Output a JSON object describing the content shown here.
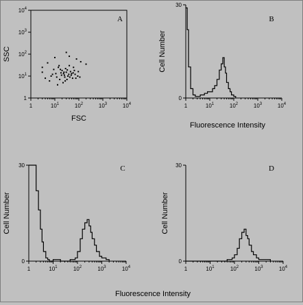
{
  "chart_data": [
    {
      "panel": "A",
      "type": "scatter",
      "xlabel": "FSC",
      "ylabel": "SSC",
      "xscale": "log",
      "yscale": "log",
      "xlim": [
        1,
        10000
      ],
      "ylim": [
        1,
        10000
      ],
      "xticks": [
        "1",
        "10^1",
        "10^2",
        "10^3",
        "10^4"
      ],
      "yticks": [
        "1",
        "10^1",
        "10^2",
        "10^3",
        "10^4"
      ],
      "points": [
        [
          5,
          40
        ],
        [
          15,
          30
        ],
        [
          40,
          80
        ],
        [
          60,
          25
        ],
        [
          80,
          60
        ],
        [
          120,
          45
        ],
        [
          30,
          120
        ],
        [
          10,
          70
        ],
        [
          200,
          35
        ],
        [
          3,
          15
        ],
        [
          8,
          12
        ],
        [
          12,
          9
        ],
        [
          20,
          18
        ],
        [
          25,
          11
        ],
        [
          6,
          6
        ],
        [
          9,
          20
        ],
        [
          18,
          14
        ],
        [
          28,
          22
        ],
        [
          35,
          10
        ],
        [
          45,
          16
        ],
        [
          55,
          8
        ],
        [
          70,
          12
        ],
        [
          4,
          8
        ],
        [
          14,
          25
        ],
        [
          22,
          5
        ],
        [
          32,
          7
        ],
        [
          40,
          30
        ],
        [
          7,
          10
        ],
        [
          11,
          13
        ],
        [
          16,
          7
        ],
        [
          26,
          9
        ],
        [
          50,
          13
        ],
        [
          90,
          10
        ],
        [
          3,
          25
        ],
        [
          13,
          4
        ],
        [
          24,
          15
        ],
        [
          38,
          12
        ],
        [
          65,
          18
        ],
        [
          110,
          9
        ],
        [
          19,
          11
        ],
        [
          23,
          13
        ],
        [
          30,
          15
        ],
        [
          42,
          9
        ],
        [
          17,
          20
        ],
        [
          27,
          6
        ],
        [
          33,
          19
        ],
        [
          48,
          11
        ],
        [
          58,
          14
        ],
        [
          75,
          8
        ],
        [
          95,
          16
        ]
      ]
    },
    {
      "panel": "B",
      "type": "histogram",
      "xlabel": "Fluorescence Intensity",
      "ylabel": "Cell Number",
      "xscale": "log",
      "xlim": [
        1,
        10000
      ],
      "ylim": [
        0,
        30
      ],
      "xticks": [
        "1",
        "10^1",
        "10^2",
        "10^3",
        "10^4"
      ],
      "yticks": [
        "0",
        "30"
      ],
      "x": [
        1,
        1.15,
        1.3,
        1.6,
        2,
        2.5,
        3,
        4,
        5,
        6,
        8,
        10,
        13,
        16,
        20,
        25,
        30,
        35,
        40,
        45,
        50,
        60,
        70,
        80,
        100,
        120
      ],
      "y": [
        29,
        22,
        10,
        3,
        1,
        0.5,
        0.5,
        1,
        1,
        1.5,
        2,
        2,
        3,
        4,
        6,
        9,
        11,
        13,
        10,
        8,
        5,
        3,
        2,
        1,
        0.5,
        0
      ]
    },
    {
      "panel": "C",
      "type": "histogram",
      "xlabel": "Fluorescence Intensity",
      "ylabel": "Cell Number",
      "xscale": "log",
      "xlim": [
        1,
        10000
      ],
      "ylim": [
        0,
        30
      ],
      "xticks": [
        "1",
        "10^1",
        "10^2",
        "10^3",
        "10^4"
      ],
      "yticks": [
        "0",
        "30"
      ],
      "x": [
        1,
        1.5,
        2,
        2.5,
        3,
        3.5,
        4,
        5,
        6,
        7,
        10,
        20,
        50,
        80,
        100,
        130,
        160,
        200,
        250,
        300,
        350,
        400,
        500,
        600,
        800,
        1000,
        1500,
        2000
      ],
      "y": [
        30,
        30,
        22,
        16,
        10,
        6,
        3,
        1,
        0.5,
        0,
        0.5,
        0,
        0.5,
        1,
        3,
        7,
        10,
        12,
        13,
        11,
        9,
        7,
        5,
        3,
        1.5,
        1,
        0.5,
        0
      ]
    },
    {
      "panel": "D",
      "type": "histogram",
      "xlabel": "",
      "ylabel": "Cell Number",
      "xscale": "log",
      "xlim": [
        1,
        10000
      ],
      "ylim": [
        0,
        30
      ],
      "xticks": [
        "1",
        "10^1",
        "10^2",
        "10^3",
        "10^4"
      ],
      "yticks": [
        "0",
        "30"
      ],
      "x": [
        1,
        10,
        50,
        80,
        100,
        130,
        160,
        200,
        250,
        300,
        350,
        400,
        500,
        600,
        800,
        1000,
        1500,
        2000,
        3000
      ],
      "y": [
        0,
        0,
        0.5,
        1,
        2,
        4,
        7,
        9,
        10,
        8,
        7,
        5,
        3,
        2,
        1,
        0.5,
        0.5,
        0.5,
        0
      ]
    }
  ],
  "bottom_label": "Fluorescence Intensity"
}
